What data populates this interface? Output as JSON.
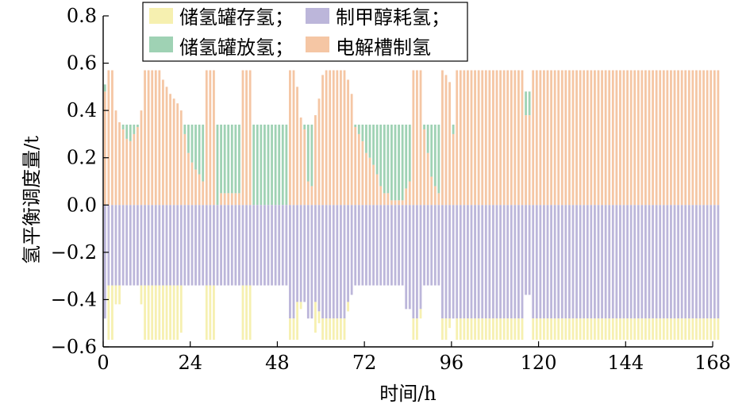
{
  "chart_data": {
    "type": "bar",
    "stacked": true,
    "title": "",
    "xlabel": "时间/h",
    "ylabel": "氢平衡调度量/t",
    "xlim": [
      0,
      168
    ],
    "ylim": [
      -0.6,
      0.8
    ],
    "xticks": [
      0,
      24,
      48,
      72,
      96,
      120,
      144,
      168
    ],
    "yticks": [
      -0.6,
      -0.4,
      -0.2,
      0.0,
      0.2,
      0.4,
      0.6,
      0.8
    ],
    "ytick_labels": [
      "−0.6",
      "−0.4",
      "−0.2",
      "0.0",
      "0.2",
      "0.4",
      "0.6",
      "0.8"
    ],
    "grid": false,
    "legend_position": "top",
    "legend": [
      {
        "name": "储氢罐存氢；",
        "color": "#f6f0b0"
      },
      {
        "name": "制甲醇耗氢；",
        "color": "#bcb6da"
      },
      {
        "name": "储氢罐放氢；",
        "color": "#9fd2b4"
      },
      {
        "name": "电解槽制氢",
        "color": "#f5c6a4"
      }
    ],
    "series": [
      {
        "name": "电解槽制氢",
        "color": "#f5c6a4",
        "values": [
          0.48,
          0.57,
          0.57,
          0.4,
          0.35,
          0.32,
          0.28,
          0.27,
          0.3,
          0.33,
          0.4,
          0.57,
          0.57,
          0.57,
          0.57,
          0.57,
          0.53,
          0.5,
          0.47,
          0.45,
          0.43,
          0.4,
          0.3,
          0.22,
          0.18,
          0.15,
          0.13,
          0.1,
          0.57,
          0.57,
          0.57,
          0.0,
          0.05,
          0.05,
          0.05,
          0.05,
          0.05,
          0.05,
          0.57,
          0.57,
          0.57,
          0.0,
          0.0,
          0.0,
          0.0,
          0.0,
          0.0,
          0.0,
          0.0,
          0.0,
          0.0,
          0.57,
          0.57,
          0.5,
          0.37,
          0.32,
          0.1,
          0.08,
          0.38,
          0.45,
          0.55,
          0.57,
          0.57,
          0.57,
          0.57,
          0.57,
          0.57,
          0.53,
          0.47,
          0.33,
          0.3,
          0.27,
          0.22,
          0.2,
          0.17,
          0.13,
          0.08,
          0.05,
          0.05,
          0.02,
          0.02,
          0.02,
          0.02,
          0.07,
          0.1,
          0.57,
          0.57,
          0.57,
          0.32,
          0.22,
          0.12,
          0.08,
          0.05,
          0.57,
          0.55,
          0.52,
          0.3,
          0.57,
          0.57,
          0.57,
          0.57,
          0.57,
          0.57,
          0.57,
          0.57,
          0.57,
          0.57,
          0.57,
          0.57,
          0.57,
          0.57,
          0.57,
          0.57,
          0.57,
          0.57,
          0.57,
          0.38,
          0.38,
          0.57,
          0.57,
          0.57,
          0.57,
          0.57,
          0.57,
          0.57,
          0.57,
          0.57,
          0.57,
          0.57,
          0.57,
          0.57,
          0.57,
          0.57,
          0.57,
          0.57,
          0.57,
          0.57,
          0.57,
          0.57,
          0.57,
          0.57,
          0.57,
          0.57,
          0.57,
          0.57,
          0.57,
          0.57,
          0.57,
          0.57,
          0.57,
          0.57,
          0.57,
          0.57,
          0.57,
          0.57,
          0.57,
          0.57,
          0.57,
          0.57,
          0.57,
          0.57,
          0.57,
          0.57,
          0.57,
          0.57,
          0.57,
          0.57,
          0.57,
          0.57,
          0.57
        ]
      },
      {
        "name": "储氢罐放氢",
        "color": "#9fd2b4",
        "values": [
          0.03,
          0.0,
          0.0,
          0.0,
          0.0,
          0.02,
          0.06,
          0.07,
          0.04,
          0.01,
          0.0,
          0.0,
          0.0,
          0.0,
          0.0,
          0.0,
          0.0,
          0.0,
          0.0,
          0.0,
          0.0,
          0.0,
          0.04,
          0.12,
          0.16,
          0.19,
          0.21,
          0.24,
          0.0,
          0.0,
          0.0,
          0.34,
          0.29,
          0.29,
          0.29,
          0.29,
          0.29,
          0.29,
          0.0,
          0.0,
          0.0,
          0.34,
          0.34,
          0.34,
          0.34,
          0.34,
          0.34,
          0.34,
          0.34,
          0.34,
          0.34,
          0.0,
          0.0,
          0.0,
          0.0,
          0.02,
          0.24,
          0.26,
          0.0,
          0.0,
          0.0,
          0.0,
          0.0,
          0.0,
          0.0,
          0.0,
          0.0,
          0.0,
          0.0,
          0.01,
          0.04,
          0.07,
          0.12,
          0.14,
          0.17,
          0.21,
          0.26,
          0.29,
          0.29,
          0.32,
          0.32,
          0.32,
          0.32,
          0.27,
          0.24,
          0.0,
          0.0,
          0.0,
          0.02,
          0.12,
          0.22,
          0.26,
          0.29,
          0.0,
          0.0,
          0.0,
          0.04,
          0.0,
          0.0,
          0.0,
          0.0,
          0.0,
          0.0,
          0.0,
          0.0,
          0.0,
          0.0,
          0.0,
          0.0,
          0.0,
          0.0,
          0.0,
          0.0,
          0.0,
          0.0,
          0.0,
          0.1,
          0.1,
          0.0,
          0.0,
          0.0,
          0.0,
          0.0,
          0.0,
          0.0,
          0.0,
          0.0,
          0.0,
          0.0,
          0.0,
          0.0,
          0.0,
          0.0,
          0.0,
          0.0,
          0.0,
          0.0,
          0.0,
          0.0,
          0.0,
          0.0,
          0.0,
          0.0,
          0.0,
          0.0,
          0.0,
          0.0,
          0.0,
          0.0,
          0.0,
          0.0,
          0.0,
          0.0,
          0.0,
          0.0,
          0.0,
          0.0,
          0.0,
          0.0,
          0.0,
          0.0,
          0.0,
          0.0,
          0.0,
          0.0,
          0.0,
          0.0,
          0.0,
          0.0,
          0.0
        ]
      },
      {
        "name": "制甲醇耗氢",
        "color": "#bcb6da",
        "values": [
          -0.48,
          -0.34,
          -0.34,
          -0.34,
          -0.34,
          -0.34,
          -0.34,
          -0.34,
          -0.34,
          -0.34,
          -0.34,
          -0.34,
          -0.34,
          -0.34,
          -0.34,
          -0.34,
          -0.34,
          -0.34,
          -0.34,
          -0.34,
          -0.34,
          -0.34,
          -0.34,
          -0.34,
          -0.34,
          -0.34,
          -0.34,
          -0.34,
          -0.34,
          -0.34,
          -0.34,
          -0.34,
          -0.34,
          -0.34,
          -0.34,
          -0.34,
          -0.34,
          -0.34,
          -0.34,
          -0.34,
          -0.34,
          -0.34,
          -0.34,
          -0.34,
          -0.34,
          -0.34,
          -0.34,
          -0.34,
          -0.34,
          -0.34,
          -0.34,
          -0.48,
          -0.48,
          -0.41,
          -0.41,
          -0.41,
          -0.48,
          -0.48,
          -0.41,
          -0.45,
          -0.48,
          -0.48,
          -0.48,
          -0.48,
          -0.48,
          -0.48,
          -0.48,
          -0.41,
          -0.38,
          -0.34,
          -0.34,
          -0.34,
          -0.34,
          -0.34,
          -0.34,
          -0.34,
          -0.34,
          -0.34,
          -0.34,
          -0.34,
          -0.34,
          -0.34,
          -0.34,
          -0.44,
          -0.44,
          -0.48,
          -0.48,
          -0.44,
          -0.34,
          -0.34,
          -0.34,
          -0.34,
          -0.34,
          -0.48,
          -0.48,
          -0.48,
          -0.48,
          -0.48,
          -0.48,
          -0.48,
          -0.48,
          -0.48,
          -0.48,
          -0.48,
          -0.48,
          -0.48,
          -0.48,
          -0.48,
          -0.48,
          -0.48,
          -0.48,
          -0.48,
          -0.48,
          -0.48,
          -0.48,
          -0.48,
          -0.38,
          -0.38,
          -0.48,
          -0.48,
          -0.48,
          -0.48,
          -0.48,
          -0.48,
          -0.48,
          -0.48,
          -0.48,
          -0.48,
          -0.48,
          -0.48,
          -0.48,
          -0.48,
          -0.48,
          -0.48,
          -0.48,
          -0.48,
          -0.48,
          -0.48,
          -0.48,
          -0.48,
          -0.48,
          -0.48,
          -0.48,
          -0.48,
          -0.48,
          -0.48,
          -0.48,
          -0.48,
          -0.48,
          -0.48,
          -0.48,
          -0.48,
          -0.48,
          -0.48,
          -0.48,
          -0.48,
          -0.48,
          -0.48,
          -0.48,
          -0.48,
          -0.48,
          -0.48,
          -0.48,
          -0.48,
          -0.48,
          -0.48,
          -0.48,
          -0.48,
          -0.48,
          -0.48
        ]
      },
      {
        "name": "储氢罐存氢",
        "color": "#f6f0b0",
        "values": [
          0.0,
          -0.23,
          -0.23,
          -0.08,
          -0.08,
          0.0,
          0.0,
          0.0,
          0.0,
          0.0,
          -0.08,
          -0.23,
          -0.23,
          -0.23,
          -0.23,
          -0.23,
          -0.23,
          -0.23,
          -0.23,
          -0.23,
          -0.23,
          -0.2,
          0.0,
          0.0,
          0.0,
          0.0,
          0.0,
          0.0,
          -0.23,
          -0.23,
          -0.23,
          0.0,
          0.0,
          0.0,
          0.0,
          0.0,
          0.0,
          0.0,
          -0.23,
          -0.23,
          -0.23,
          0.0,
          0.0,
          0.0,
          0.0,
          0.0,
          0.0,
          0.0,
          0.0,
          0.0,
          0.0,
          -0.09,
          -0.09,
          -0.16,
          -0.03,
          0.0,
          0.0,
          0.0,
          -0.13,
          -0.05,
          -0.09,
          -0.09,
          -0.09,
          -0.09,
          -0.09,
          -0.09,
          -0.09,
          -0.04,
          0.0,
          0.0,
          0.0,
          0.0,
          0.0,
          0.0,
          0.0,
          0.0,
          0.0,
          0.0,
          0.0,
          0.0,
          0.0,
          0.0,
          0.0,
          0.0,
          0.0,
          -0.09,
          -0.09,
          -0.04,
          0.0,
          0.0,
          0.0,
          0.0,
          0.0,
          -0.09,
          -0.09,
          -0.04,
          0.0,
          -0.09,
          -0.09,
          -0.09,
          -0.09,
          -0.09,
          -0.09,
          -0.09,
          -0.09,
          -0.09,
          -0.09,
          -0.09,
          -0.09,
          -0.09,
          -0.09,
          -0.09,
          -0.09,
          -0.09,
          -0.09,
          -0.09,
          0.0,
          0.0,
          -0.09,
          -0.09,
          -0.09,
          -0.09,
          -0.09,
          -0.09,
          -0.09,
          -0.09,
          -0.09,
          -0.09,
          -0.09,
          -0.09,
          -0.09,
          -0.09,
          -0.09,
          -0.09,
          -0.09,
          -0.09,
          -0.09,
          -0.09,
          -0.09,
          -0.09,
          -0.09,
          -0.09,
          -0.09,
          -0.09,
          -0.09,
          -0.09,
          -0.09,
          -0.09,
          -0.09,
          -0.09,
          -0.09,
          -0.09,
          -0.09,
          -0.09,
          -0.09,
          -0.09,
          -0.09,
          -0.09,
          -0.09,
          -0.09,
          -0.09,
          -0.09,
          -0.09,
          -0.09,
          -0.09,
          -0.09,
          -0.09,
          -0.09,
          -0.09,
          -0.09
        ]
      }
    ]
  }
}
